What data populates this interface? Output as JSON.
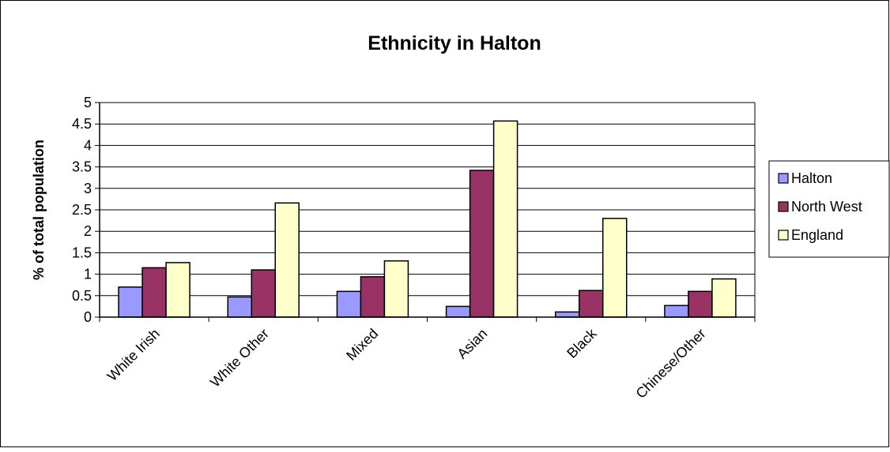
{
  "chart_data": {
    "type": "bar",
    "title": "Ethnicity in Halton",
    "xlabel": "",
    "ylabel": "% of total population",
    "categories": [
      "White Irish",
      "White Other",
      "Mixed",
      "Asian",
      "Black",
      "Chinese/Other"
    ],
    "series": [
      {
        "name": "Halton",
        "values": [
          0.7,
          0.47,
          0.6,
          0.25,
          0.12,
          0.27
        ],
        "color": "#9999FF"
      },
      {
        "name": "North West",
        "values": [
          1.15,
          1.1,
          0.94,
          3.42,
          0.62,
          0.6
        ],
        "color": "#993366"
      },
      {
        "name": "England",
        "values": [
          1.27,
          2.66,
          1.31,
          4.57,
          2.3,
          0.89
        ],
        "color": "#FFFFCC"
      }
    ],
    "ylim": [
      0,
      5
    ],
    "yticks": [
      "0",
      "0.5",
      "1",
      "1.5",
      "2",
      "2.5",
      "3",
      "3.5",
      "4",
      "4.5",
      "5"
    ],
    "grid": true,
    "legend_position": "right"
  }
}
